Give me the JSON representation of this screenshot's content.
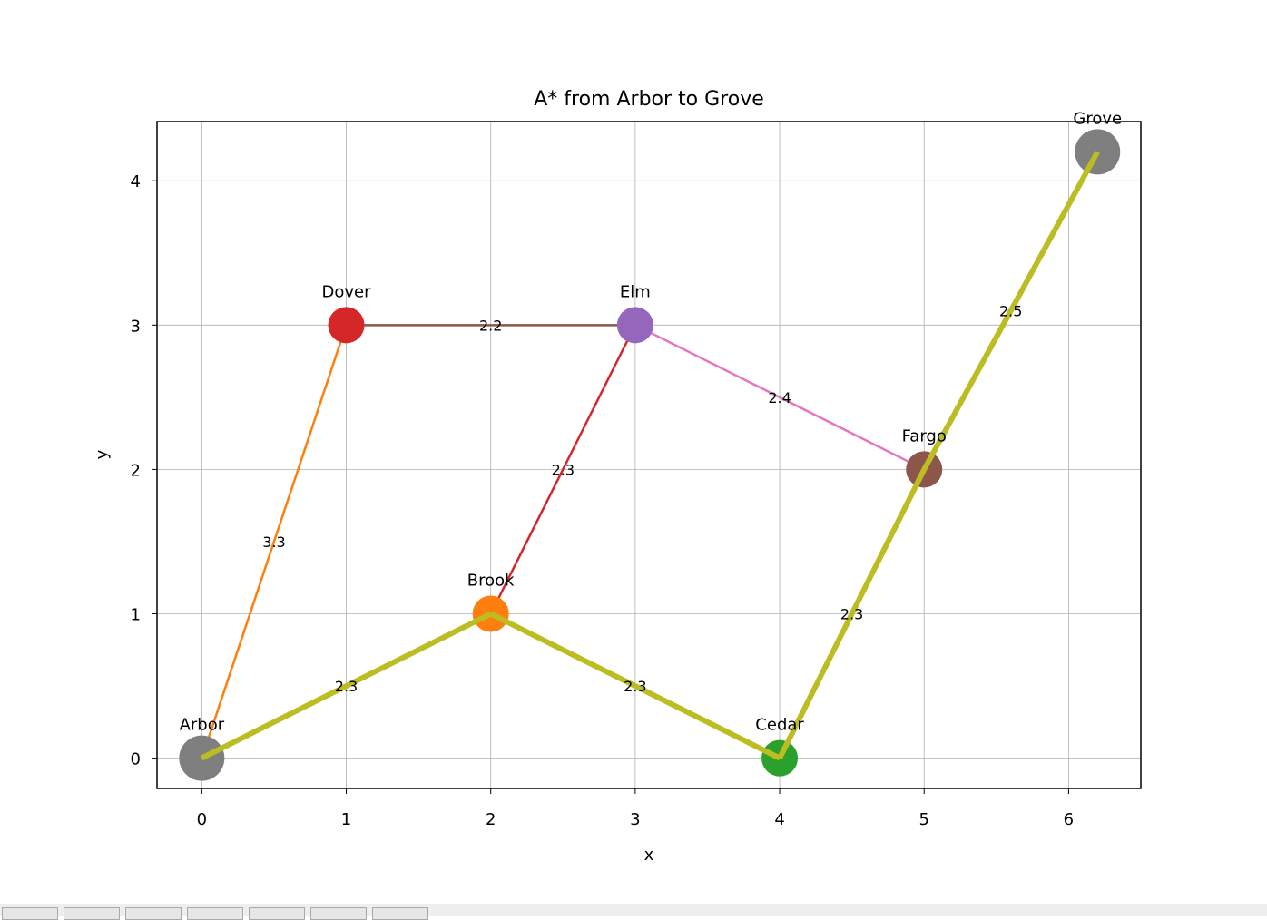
{
  "chart_data": {
    "type": "graph",
    "title": "A* from Arbor to Grove",
    "xlabel": "x",
    "ylabel": "y",
    "xlim": [
      -0.31,
      6.5
    ],
    "ylim": [
      -0.21,
      4.41
    ],
    "xticks": [
      0,
      1,
      2,
      3,
      4,
      5,
      6
    ],
    "yticks": [
      0,
      1,
      2,
      3,
      4
    ],
    "grid": true,
    "nodes": [
      {
        "name": "Arbor",
        "x": 0,
        "y": 0,
        "color": "#7f7f7f",
        "endpoint": true
      },
      {
        "name": "Brook",
        "x": 2,
        "y": 1,
        "color": "#ff7f0e",
        "endpoint": false
      },
      {
        "name": "Cedar",
        "x": 4,
        "y": 0,
        "color": "#2ca02c",
        "endpoint": false
      },
      {
        "name": "Dover",
        "x": 1,
        "y": 3,
        "color": "#d62728",
        "endpoint": false
      },
      {
        "name": "Elm",
        "x": 3,
        "y": 3,
        "color": "#9467bd",
        "endpoint": false
      },
      {
        "name": "Fargo",
        "x": 5,
        "y": 2,
        "color": "#8c564b",
        "endpoint": false
      },
      {
        "name": "Grove",
        "x": 6.2,
        "y": 4.2,
        "color": "#7f7f7f",
        "endpoint": true
      }
    ],
    "edges": [
      {
        "from": "Arbor",
        "to": "Dover",
        "weight": "3.3",
        "color": "#ff7f0e",
        "path": false
      },
      {
        "from": "Dover",
        "to": "Elm",
        "weight": "2.2",
        "color": "#8c564b",
        "path": false
      },
      {
        "from": "Brook",
        "to": "Elm",
        "weight": "2.3",
        "color": "#d62728",
        "path": false
      },
      {
        "from": "Elm",
        "to": "Fargo",
        "weight": "2.4",
        "color": "#e377c2",
        "path": false
      },
      {
        "from": "Arbor",
        "to": "Brook",
        "weight": "2.3",
        "color": "#bcbd22",
        "path": true
      },
      {
        "from": "Brook",
        "to": "Cedar",
        "weight": "2.3",
        "color": "#bcbd22",
        "path": true
      },
      {
        "from": "Cedar",
        "to": "Fargo",
        "weight": "2.3",
        "color": "#bcbd22",
        "path": true
      },
      {
        "from": "Fargo",
        "to": "Grove",
        "weight": "2.5",
        "color": "#bcbd22",
        "path": true
      }
    ],
    "path": [
      "Arbor",
      "Brook",
      "Cedar",
      "Fargo",
      "Grove"
    ],
    "path_color": "#bcbd22"
  },
  "toolbar": {
    "button_count": 7
  }
}
